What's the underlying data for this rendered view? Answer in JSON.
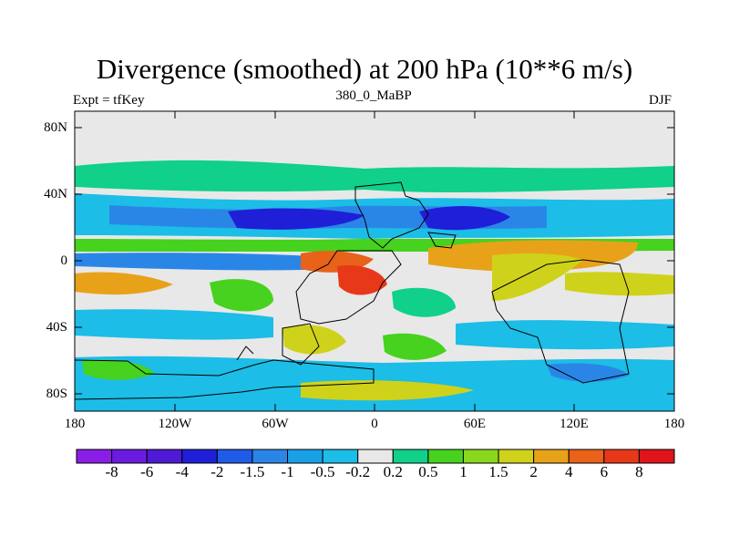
{
  "title": "Divergence (smoothed) at 200 hPa (10**6 m/s)",
  "left_label": "Expt = tfKey",
  "center_label": "380_0_MaBP",
  "right_label": "DJF",
  "chart_data": {
    "type": "heatmap",
    "title": "Divergence (smoothed) at 200 hPa (10**6 m/s)",
    "y_ticks": [
      "80N",
      "40N",
      "0",
      "40S",
      "80S"
    ],
    "x_ticks": [
      "180",
      "120W",
      "60W",
      "0",
      "60E",
      "120E",
      "180"
    ],
    "lon_range": [
      -180,
      180
    ],
    "lat_range": [
      -90,
      90
    ],
    "colorbar": {
      "labels": [
        "-8",
        "-6",
        "-4",
        "-2",
        "-1.5",
        "-1",
        "-0.5",
        "-0.2",
        "0.2",
        "0.5",
        "1",
        "1.5",
        "2",
        "4",
        "6",
        "8"
      ],
      "colors": [
        "#8a1ee6",
        "#6a1be0",
        "#4e1ad6",
        "#1f1fd8",
        "#1f5be6",
        "#2a86e6",
        "#1aa0e6",
        "#1cbde6",
        "#e8e8e8",
        "#10d08a",
        "#46d21e",
        "#8ad81e",
        "#cfd21a",
        "#e8a21a",
        "#e8621a",
        "#e8381a",
        "#e0141a"
      ]
    }
  }
}
